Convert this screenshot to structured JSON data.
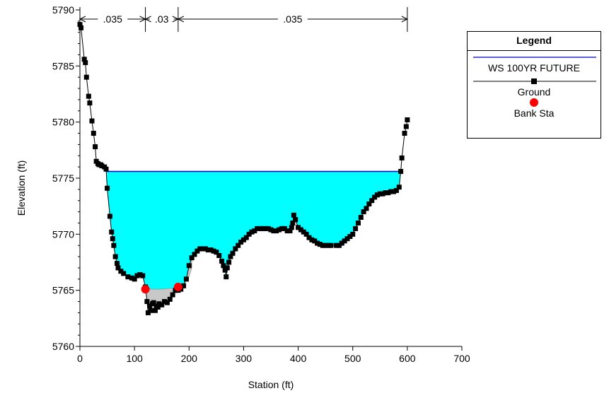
{
  "chart_data": {
    "type": "line",
    "xlabel": "Station (ft)",
    "ylabel": "Elevation (ft)",
    "xlim": [
      0,
      700
    ],
    "ylim": [
      5760,
      5790
    ],
    "x_ticks": [
      0,
      100,
      200,
      300,
      400,
      500,
      600,
      700
    ],
    "y_ticks": [
      5760,
      5765,
      5770,
      5775,
      5780,
      5785,
      5790
    ],
    "legend": {
      "title": "Legend",
      "position": "top-right",
      "entries": [
        {
          "name": "WS 100YR FUTURE",
          "color": "#0000cc",
          "marker": "line"
        },
        {
          "name": "Ground",
          "color": "#000000",
          "marker": "square"
        },
        {
          "name": "Bank Sta",
          "color": "#ff0000",
          "marker": "circle"
        }
      ]
    },
    "manning_n": [
      {
        "label": ".035",
        "from": 0,
        "to": 120
      },
      {
        "label": ".03",
        "from": 120,
        "to": 180
      },
      {
        "label": ".035",
        "from": 180,
        "to": 600
      }
    ],
    "water_surface": {
      "name": "WS 100YR FUTURE",
      "elevation": 5775.6,
      "x_start": 48,
      "x_end": 590,
      "fill": "#00ffff",
      "color": "#0000cc"
    },
    "ground": {
      "name": "Ground",
      "x": [
        0,
        2,
        8,
        10,
        12,
        16,
        18,
        22,
        25,
        28,
        30,
        33,
        35,
        38,
        40,
        45,
        48,
        50,
        55,
        58,
        60,
        62,
        65,
        68,
        70,
        75,
        80,
        88,
        95,
        100,
        105,
        110,
        115,
        120,
        123,
        125,
        128,
        130,
        133,
        135,
        138,
        140,
        143,
        145,
        150,
        155,
        160,
        165,
        170,
        175,
        180,
        185,
        190,
        195,
        200,
        205,
        210,
        215,
        220,
        225,
        230,
        235,
        240,
        245,
        250,
        255,
        260,
        263,
        266,
        268,
        270,
        273,
        276,
        280,
        285,
        290,
        295,
        300,
        305,
        310,
        315,
        320,
        325,
        330,
        335,
        340,
        345,
        350,
        355,
        360,
        365,
        370,
        375,
        380,
        385,
        388,
        390,
        392,
        395,
        400,
        405,
        410,
        415,
        420,
        425,
        430,
        435,
        440,
        445,
        450,
        455,
        460,
        470,
        475,
        480,
        485,
        490,
        495,
        500,
        505,
        510,
        515,
        520,
        525,
        530,
        535,
        540,
        545,
        550,
        555,
        560,
        565,
        570,
        575,
        580,
        585,
        588,
        590,
        595,
        598,
        600
      ],
      "y": [
        5788.7,
        5788.4,
        5785.6,
        5785.3,
        5784.0,
        5782.3,
        5781.7,
        5780.1,
        5779.0,
        5777.8,
        5776.5,
        5776.3,
        5776.2,
        5776.2,
        5776.1,
        5776.0,
        5775.8,
        5774.1,
        5771.6,
        5770.2,
        5769.6,
        5769.0,
        5768.0,
        5767.4,
        5767.0,
        5766.7,
        5766.5,
        5766.2,
        5766.1,
        5766.0,
        5766.3,
        5766.4,
        5766.3,
        5765.3,
        5764.0,
        5763.0,
        5763.6,
        5763.2,
        5763.8,
        5763.9,
        5763.2,
        5763.6,
        5763.5,
        5763.8,
        5763.7,
        5764.0,
        5763.9,
        5764.2,
        5764.6,
        5765.0,
        5765.0,
        5765.1,
        5765.4,
        5766.0,
        5767.2,
        5767.9,
        5768.2,
        5768.5,
        5768.7,
        5768.7,
        5768.7,
        5768.6,
        5768.6,
        5768.5,
        5768.4,
        5768.1,
        5767.6,
        5767.2,
        5766.8,
        5766.2,
        5767.0,
        5767.5,
        5768.0,
        5768.3,
        5768.7,
        5769.0,
        5769.3,
        5769.5,
        5769.7,
        5770.0,
        5770.2,
        5770.3,
        5770.5,
        5770.5,
        5770.5,
        5770.5,
        5770.5,
        5770.4,
        5770.3,
        5770.3,
        5770.4,
        5770.5,
        5770.5,
        5770.3,
        5770.3,
        5770.6,
        5771.0,
        5771.7,
        5771.3,
        5770.6,
        5770.4,
        5770.2,
        5770.0,
        5769.7,
        5769.5,
        5769.4,
        5769.2,
        5769.1,
        5769.0,
        5769.0,
        5769.0,
        5769.0,
        5769.0,
        5769.0,
        5769.2,
        5769.4,
        5769.6,
        5769.8,
        5770.0,
        5770.5,
        5771.0,
        5771.5,
        5772.0,
        5772.3,
        5772.7,
        5773.0,
        5773.3,
        5773.5,
        5773.6,
        5773.6,
        5773.7,
        5773.7,
        5773.8,
        5773.8,
        5773.9,
        5774.2,
        5775.6,
        5776.8,
        5779.0,
        5779.6,
        5780.2
      ]
    },
    "bank_stations": {
      "name": "Bank Sta",
      "x": [
        120,
        180
      ],
      "y": [
        5765.1,
        5765.3
      ]
    },
    "ineffective_fill": {
      "x": [
        120,
        130,
        150,
        170,
        180,
        190,
        200,
        205
      ],
      "y": [
        5765.3,
        5765.1,
        5765.1,
        5765.2,
        5765.3,
        5765.6,
        5766.2,
        5767.0
      ],
      "fill": "#c8c8c8"
    }
  }
}
